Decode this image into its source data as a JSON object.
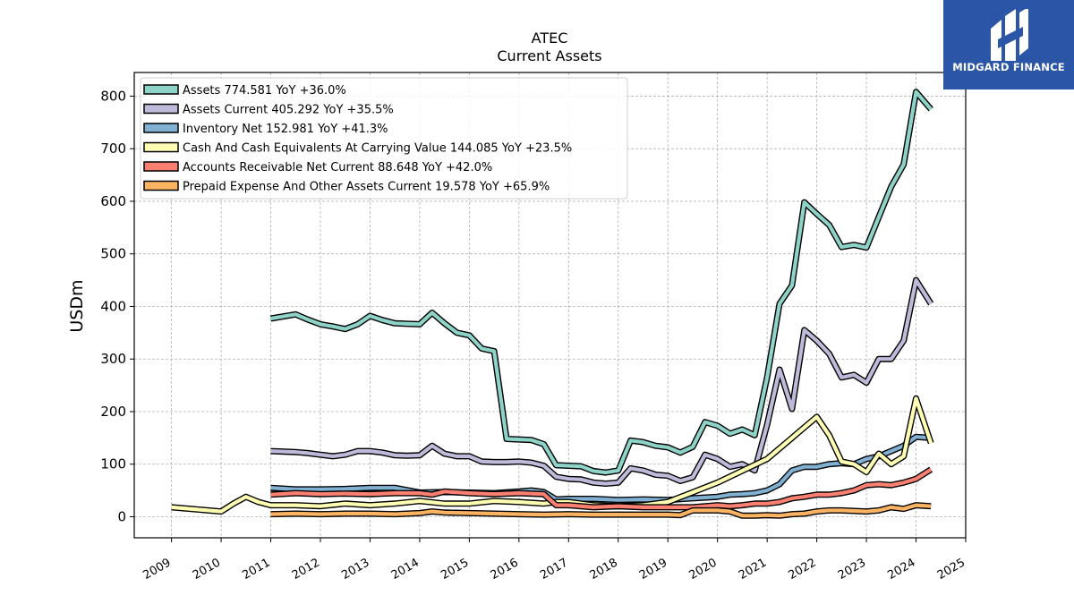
{
  "logo": {
    "text": "MIDGARD FINANCE",
    "bg_color": "#2b56a7"
  },
  "chart_data": {
    "type": "line",
    "title": "ATEC",
    "subtitle": "Current  Assets",
    "ylabel": "USDm",
    "xlabel": "",
    "ylim": [
      -40,
      845
    ],
    "xlim": [
      2008.25,
      2025.0
    ],
    "yticks": [
      0,
      100,
      200,
      300,
      400,
      500,
      600,
      700,
      800
    ],
    "xticks": [
      2009,
      2010,
      2011,
      2012,
      2013,
      2014,
      2015,
      2016,
      2017,
      2018,
      2019,
      2020,
      2021,
      2022,
      2023,
      2024,
      2025
    ],
    "grid": true,
    "legend_position": "top-left",
    "series": [
      {
        "name": "Assets  774.581 YoY +36.0%",
        "color": "#8dd3c7",
        "x": [
          2011.0,
          2011.5,
          2011.75,
          2012.0,
          2012.25,
          2012.5,
          2012.75,
          2013.0,
          2013.25,
          2013.5,
          2013.75,
          2014.0,
          2014.25,
          2014.5,
          2014.75,
          2015.0,
          2015.25,
          2015.5,
          2015.75,
          2016.0,
          2016.25,
          2016.5,
          2016.75,
          2017.0,
          2017.25,
          2017.5,
          2017.75,
          2018.0,
          2018.25,
          2018.5,
          2018.75,
          2019.0,
          2019.25,
          2019.5,
          2019.75,
          2020.0,
          2020.25,
          2020.5,
          2020.75,
          2021.0,
          2021.25,
          2021.5,
          2021.75,
          2022.0,
          2022.25,
          2022.5,
          2022.75,
          2023.0,
          2023.25,
          2023.5,
          2023.75,
          2024.0,
          2024.3
        ],
        "values": [
          377,
          385,
          375,
          366,
          362,
          357,
          366,
          382,
          374,
          368,
          367,
          366,
          388,
          368,
          350,
          345,
          320,
          315,
          148,
          147,
          146,
          138,
          98,
          97,
          96,
          87,
          84,
          88,
          145,
          142,
          135,
          132,
          122,
          133,
          180,
          173,
          158,
          166,
          155,
          265,
          405,
          440,
          598,
          576,
          555,
          513,
          517,
          512,
          570,
          628,
          670,
          808,
          775
        ]
      },
      {
        "name": "Assets Current  405.292 YoY +35.5%",
        "color": "#bebada",
        "x": [
          2011.0,
          2011.5,
          2011.75,
          2012.0,
          2012.25,
          2012.5,
          2012.75,
          2013.0,
          2013.25,
          2013.5,
          2013.75,
          2014.0,
          2014.25,
          2014.5,
          2014.75,
          2015.0,
          2015.25,
          2015.5,
          2015.75,
          2016.0,
          2016.25,
          2016.5,
          2016.75,
          2017.0,
          2017.25,
          2017.5,
          2017.75,
          2018.0,
          2018.25,
          2018.5,
          2018.75,
          2019.0,
          2019.25,
          2019.5,
          2019.75,
          2020.0,
          2020.25,
          2020.5,
          2020.75,
          2021.0,
          2021.25,
          2021.5,
          2021.75,
          2022.0,
          2022.25,
          2022.5,
          2022.75,
          2023.0,
          2023.25,
          2023.5,
          2023.75,
          2024.0,
          2024.3
        ],
        "values": [
          125,
          123,
          121,
          118,
          115,
          118,
          125,
          125,
          122,
          117,
          116,
          117,
          135,
          120,
          115,
          115,
          105,
          104,
          104,
          105,
          103,
          97,
          76,
          72,
          71,
          65,
          63,
          65,
          92,
          88,
          80,
          78,
          68,
          75,
          118,
          110,
          95,
          100,
          88,
          175,
          280,
          205,
          355,
          335,
          310,
          265,
          270,
          255,
          300,
          300,
          335,
          450,
          405
        ]
      },
      {
        "name": "Inventory Net  152.981 YoY +41.3%",
        "color": "#80b1d3",
        "x": [
          2011.0,
          2011.5,
          2012.0,
          2012.5,
          2013.0,
          2013.5,
          2014.0,
          2014.5,
          2015.0,
          2015.5,
          2016.0,
          2016.25,
          2016.5,
          2016.75,
          2017.0,
          2017.5,
          2018.0,
          2018.5,
          2019.0,
          2019.5,
          2020.0,
          2020.25,
          2020.5,
          2020.75,
          2021.0,
          2021.25,
          2021.5,
          2021.75,
          2022.0,
          2022.25,
          2022.5,
          2022.75,
          2023.0,
          2023.25,
          2023.5,
          2023.75,
          2024.0,
          2024.3
        ],
        "values": [
          55,
          52,
          52,
          53,
          55,
          55,
          46,
          47,
          46,
          45,
          48,
          50,
          47,
          33,
          34,
          34,
          32,
          33,
          32,
          35,
          38,
          42,
          43,
          45,
          50,
          62,
          88,
          95,
          95,
          100,
          102,
          100,
          110,
          115,
          125,
          135,
          152,
          150
        ]
      },
      {
        "name": "Cash And Cash Equivalents At Carrying Value  144.085 YoY +23.5%",
        "color": "#ffffb3",
        "x": [
          2009.0,
          2010.0,
          2010.25,
          2010.5,
          2010.75,
          2011.0,
          2011.5,
          2012.0,
          2012.5,
          2013.0,
          2013.5,
          2014.0,
          2014.5,
          2015.0,
          2015.5,
          2016.0,
          2016.5,
          2016.75,
          2017.0,
          2017.5,
          2018.0,
          2018.5,
          2019.0,
          2020.0,
          2021.0,
          2021.5,
          2021.75,
          2022.0,
          2022.25,
          2022.5,
          2022.75,
          2023.0,
          2023.25,
          2023.5,
          2023.75,
          2024.0,
          2024.3
        ],
        "values": [
          18,
          10,
          25,
          38,
          28,
          22,
          22,
          20,
          25,
          22,
          25,
          30,
          25,
          25,
          30,
          28,
          25,
          28,
          28,
          22,
          20,
          22,
          28,
          65,
          110,
          150,
          170,
          190,
          155,
          105,
          100,
          85,
          120,
          100,
          115,
          225,
          140
        ]
      },
      {
        "name": "Accounts Receivable Net Current  88.648 YoY +42.0%",
        "color": "#fb8072",
        "x": [
          2011.0,
          2011.5,
          2012.0,
          2012.5,
          2013.0,
          2013.5,
          2014.0,
          2014.25,
          2014.5,
          2015.0,
          2015.5,
          2016.0,
          2016.5,
          2016.75,
          2017.0,
          2017.5,
          2018.0,
          2018.5,
          2019.0,
          2019.5,
          2020.0,
          2020.25,
          2020.5,
          2020.75,
          2021.0,
          2021.25,
          2021.5,
          2021.75,
          2022.0,
          2022.25,
          2022.5,
          2022.75,
          2023.0,
          2023.25,
          2023.5,
          2023.75,
          2024.0,
          2024.3
        ],
        "values": [
          42,
          45,
          43,
          44,
          43,
          45,
          45,
          42,
          48,
          45,
          43,
          45,
          43,
          22,
          22,
          18,
          20,
          18,
          18,
          18,
          22,
          20,
          22,
          25,
          25,
          28,
          35,
          38,
          42,
          42,
          45,
          50,
          60,
          62,
          60,
          65,
          72,
          90
        ]
      },
      {
        "name": "Prepaid Expense And Other Assets Current  19.578 YoY +65.9%",
        "color": "#fdb462",
        "x": [
          2011.0,
          2011.5,
          2012.0,
          2012.5,
          2013.0,
          2013.5,
          2014.0,
          2014.25,
          2014.5,
          2015.0,
          2015.5,
          2016.0,
          2016.5,
          2017.0,
          2017.5,
          2018.0,
          2018.5,
          2019.0,
          2019.25,
          2019.5,
          2020.0,
          2020.25,
          2020.5,
          2020.75,
          2021.0,
          2021.25,
          2021.5,
          2021.75,
          2022.0,
          2022.25,
          2022.5,
          2022.75,
          2023.0,
          2023.25,
          2023.5,
          2023.75,
          2024.0,
          2024.3
        ],
        "values": [
          5,
          6,
          5,
          6,
          6,
          5,
          7,
          10,
          8,
          7,
          6,
          5,
          4,
          5,
          4,
          4,
          4,
          4,
          3,
          12,
          12,
          10,
          2,
          2,
          3,
          2,
          5,
          6,
          10,
          12,
          12,
          11,
          10,
          12,
          18,
          15,
          22,
          20
        ]
      }
    ]
  }
}
